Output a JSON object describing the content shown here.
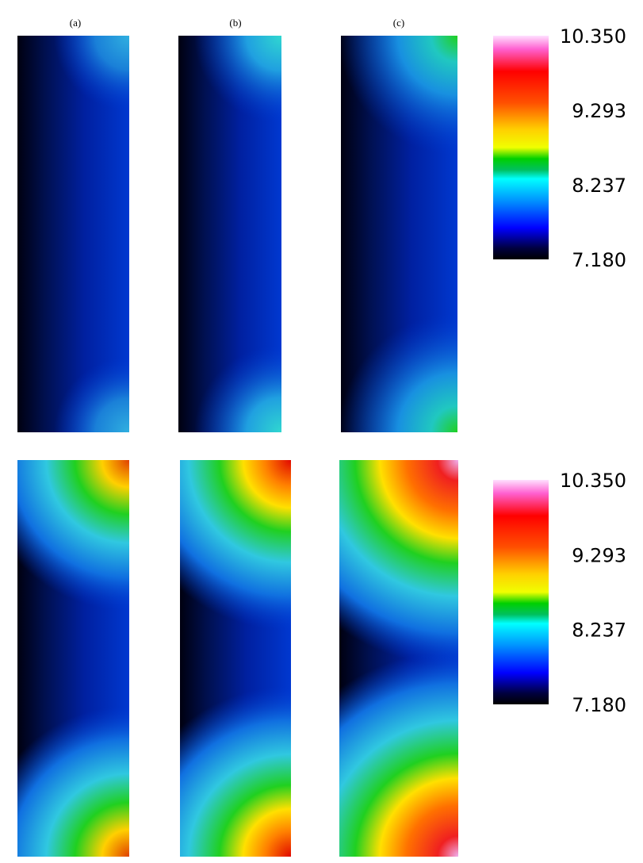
{
  "panel_labels": [
    "(a)",
    "(b)",
    "(c)"
  ],
  "colorbars": [
    {
      "ticks": [
        "10.350",
        "9.293",
        "8.237",
        "7.180"
      ]
    },
    {
      "ticks": [
        "10.350",
        "9.293",
        "8.237",
        "7.180"
      ]
    }
  ]
}
